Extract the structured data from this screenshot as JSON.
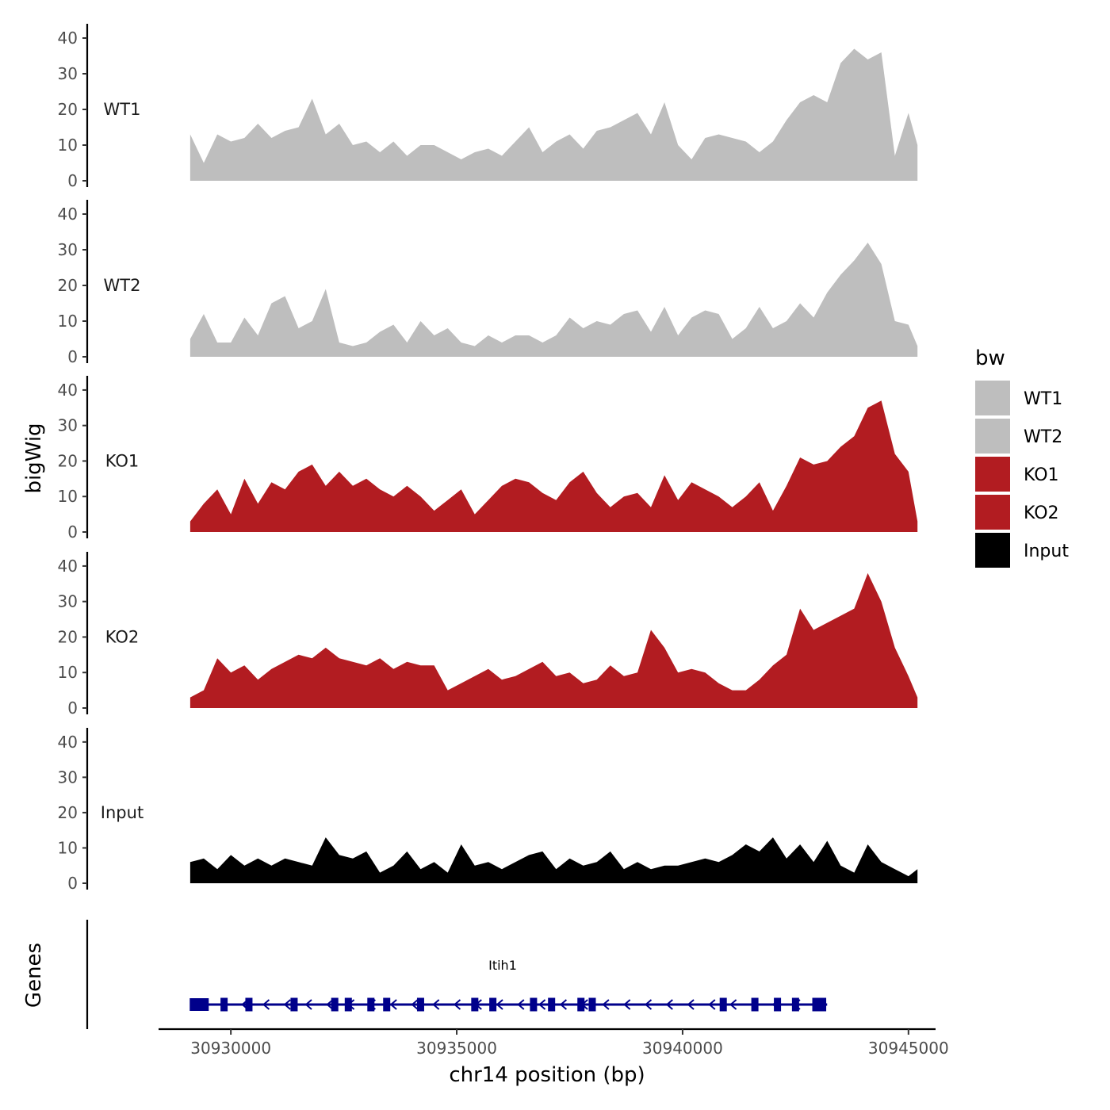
{
  "chart_data": {
    "type": "area",
    "ylabel": "bigWig",
    "xlabel": "chr14 position (bp)",
    "xlim": [
      30928400,
      30945600
    ],
    "x_ticks": [
      30930000,
      30935000,
      30940000,
      30945000
    ],
    "x_tick_labels": [
      "30930000",
      "30935000",
      "30940000",
      "30945000"
    ],
    "ylim": [
      0,
      44
    ],
    "y_ticks": [
      0,
      10,
      20,
      30,
      40
    ],
    "y_tick_labels": [
      "0",
      "10",
      "20",
      "30",
      "40"
    ],
    "legend": {
      "title": "bw",
      "placement": "right",
      "entries": [
        {
          "label": "WT1",
          "color": "#bebebe"
        },
        {
          "label": "WT2",
          "color": "#bebebe"
        },
        {
          "label": "KO1",
          "color": "#b21c21"
        },
        {
          "label": "KO2",
          "color": "#b21c21"
        },
        {
          "label": "Input",
          "color": "#000000"
        }
      ]
    },
    "series": [
      {
        "name": "WT1",
        "color": "#bebebe",
        "x": [
          30929100,
          30929400,
          30929700,
          30930000,
          30930300,
          30930600,
          30930900,
          30931200,
          30931500,
          30931800,
          30932100,
          30932400,
          30932700,
          30933000,
          30933300,
          30933600,
          30933900,
          30934200,
          30934500,
          30934800,
          30935100,
          30935400,
          30935700,
          30936000,
          30936300,
          30936600,
          30936900,
          30937200,
          30937500,
          30937800,
          30938100,
          30938400,
          30938700,
          30939000,
          30939300,
          30939600,
          30939900,
          30940200,
          30940500,
          30940800,
          30941100,
          30941400,
          30941700,
          30942000,
          30942300,
          30942600,
          30942900,
          30943200,
          30943500,
          30943800,
          30944100,
          30944400,
          30944700,
          30945000,
          30945200
        ],
        "values": [
          13,
          5,
          13,
          11,
          12,
          16,
          12,
          14,
          15,
          23,
          13,
          16,
          10,
          11,
          8,
          11,
          7,
          10,
          10,
          8,
          6,
          8,
          9,
          7,
          11,
          15,
          8,
          11,
          13,
          9,
          14,
          15,
          17,
          19,
          13,
          22,
          10,
          6,
          12,
          13,
          12,
          11,
          8,
          11,
          17,
          22,
          24,
          22,
          33,
          37,
          34,
          36,
          7,
          19,
          10
        ]
      },
      {
        "name": "WT2",
        "color": "#bebebe",
        "x": [
          30929100,
          30929400,
          30929700,
          30930000,
          30930300,
          30930600,
          30930900,
          30931200,
          30931500,
          30931800,
          30932100,
          30932400,
          30932700,
          30933000,
          30933300,
          30933600,
          30933900,
          30934200,
          30934500,
          30934800,
          30935100,
          30935400,
          30935700,
          30936000,
          30936300,
          30936600,
          30936900,
          30937200,
          30937500,
          30937800,
          30938100,
          30938400,
          30938700,
          30939000,
          30939300,
          30939600,
          30939900,
          30940200,
          30940500,
          30940800,
          30941100,
          30941400,
          30941700,
          30942000,
          30942300,
          30942600,
          30942900,
          30943200,
          30943500,
          30943800,
          30944100,
          30944400,
          30944700,
          30945000,
          30945200
        ],
        "values": [
          5,
          12,
          4,
          4,
          11,
          6,
          15,
          17,
          8,
          10,
          19,
          4,
          3,
          4,
          7,
          9,
          4,
          10,
          6,
          8,
          4,
          3,
          6,
          4,
          6,
          6,
          4,
          6,
          11,
          8,
          10,
          9,
          12,
          13,
          7,
          14,
          6,
          11,
          13,
          12,
          5,
          8,
          14,
          8,
          10,
          15,
          11,
          18,
          23,
          27,
          32,
          26,
          10,
          9,
          3
        ]
      },
      {
        "name": "KO1",
        "color": "#b21c21",
        "x": [
          30929100,
          30929400,
          30929700,
          30930000,
          30930300,
          30930600,
          30930900,
          30931200,
          30931500,
          30931800,
          30932100,
          30932400,
          30932700,
          30933000,
          30933300,
          30933600,
          30933900,
          30934200,
          30934500,
          30934800,
          30935100,
          30935400,
          30935700,
          30936000,
          30936300,
          30936600,
          30936900,
          30937200,
          30937500,
          30937800,
          30938100,
          30938400,
          30938700,
          30939000,
          30939300,
          30939600,
          30939900,
          30940200,
          30940500,
          30940800,
          30941100,
          30941400,
          30941700,
          30942000,
          30942300,
          30942600,
          30942900,
          30943200,
          30943500,
          30943800,
          30944100,
          30944400,
          30944700,
          30945000,
          30945200
        ],
        "values": [
          3,
          8,
          12,
          5,
          15,
          8,
          14,
          12,
          17,
          19,
          13,
          17,
          13,
          15,
          12,
          10,
          13,
          10,
          6,
          9,
          12,
          5,
          9,
          13,
          15,
          14,
          11,
          9,
          14,
          17,
          11,
          7,
          10,
          11,
          7,
          16,
          9,
          14,
          12,
          10,
          7,
          10,
          14,
          6,
          13,
          21,
          19,
          20,
          24,
          27,
          35,
          37,
          22,
          17,
          3
        ]
      },
      {
        "name": "KO2",
        "color": "#b21c21",
        "x": [
          30929100,
          30929400,
          30929700,
          30930000,
          30930300,
          30930600,
          30930900,
          30931200,
          30931500,
          30931800,
          30932100,
          30932400,
          30932700,
          30933000,
          30933300,
          30933600,
          30933900,
          30934200,
          30934500,
          30934800,
          30935100,
          30935400,
          30935700,
          30936000,
          30936300,
          30936600,
          30936900,
          30937200,
          30937500,
          30937800,
          30938100,
          30938400,
          30938700,
          30939000,
          30939300,
          30939600,
          30939900,
          30940200,
          30940500,
          30940800,
          30941100,
          30941400,
          30941700,
          30942000,
          30942300,
          30942600,
          30942900,
          30943200,
          30943500,
          30943800,
          30944100,
          30944400,
          30944700,
          30945000,
          30945200
        ],
        "values": [
          3,
          5,
          14,
          10,
          12,
          8,
          11,
          13,
          15,
          14,
          17,
          14,
          13,
          12,
          14,
          11,
          13,
          12,
          12,
          5,
          7,
          9,
          11,
          8,
          9,
          11,
          13,
          9,
          10,
          7,
          8,
          12,
          9,
          10,
          22,
          17,
          10,
          11,
          10,
          7,
          5,
          5,
          8,
          12,
          15,
          28,
          22,
          24,
          26,
          28,
          38,
          30,
          17,
          9,
          3
        ]
      },
      {
        "name": "Input",
        "color": "#000000",
        "x": [
          30929100,
          30929400,
          30929700,
          30930000,
          30930300,
          30930600,
          30930900,
          30931200,
          30931500,
          30931800,
          30932100,
          30932400,
          30932700,
          30933000,
          30933300,
          30933600,
          30933900,
          30934200,
          30934500,
          30934800,
          30935100,
          30935400,
          30935700,
          30936000,
          30936300,
          30936600,
          30936900,
          30937200,
          30937500,
          30937800,
          30938100,
          30938400,
          30938700,
          30939000,
          30939300,
          30939600,
          30939900,
          30940200,
          30940500,
          30940800,
          30941100,
          30941400,
          30941700,
          30942000,
          30942300,
          30942600,
          30942900,
          30943200,
          30943500,
          30943800,
          30944100,
          30944400,
          30944700,
          30945000,
          30945200
        ],
        "values": [
          6,
          7,
          4,
          8,
          5,
          7,
          5,
          7,
          6,
          5,
          13,
          8,
          7,
          9,
          3,
          5,
          9,
          4,
          6,
          3,
          11,
          5,
          6,
          4,
          6,
          8,
          9,
          4,
          7,
          5,
          6,
          9,
          4,
          6,
          4,
          5,
          5,
          6,
          7,
          6,
          8,
          11,
          9,
          13,
          7,
          11,
          6,
          12,
          5,
          3,
          11,
          6,
          4,
          2,
          4
        ]
      }
    ],
    "genes_track": {
      "label": "Genes",
      "gene_name": "Itih1",
      "color": "#00008b",
      "start": 30929100,
      "end": 30943200,
      "strand": "-",
      "exons": [
        30929300,
        30929850,
        30930400,
        30931400,
        30932300,
        30932600,
        30933100,
        30933450,
        30934200,
        30935400,
        30935800,
        30936700,
        30937100,
        30937750,
        30938000,
        30940900,
        30941600,
        30942100,
        30942500,
        30942950,
        30943100
      ]
    }
  }
}
